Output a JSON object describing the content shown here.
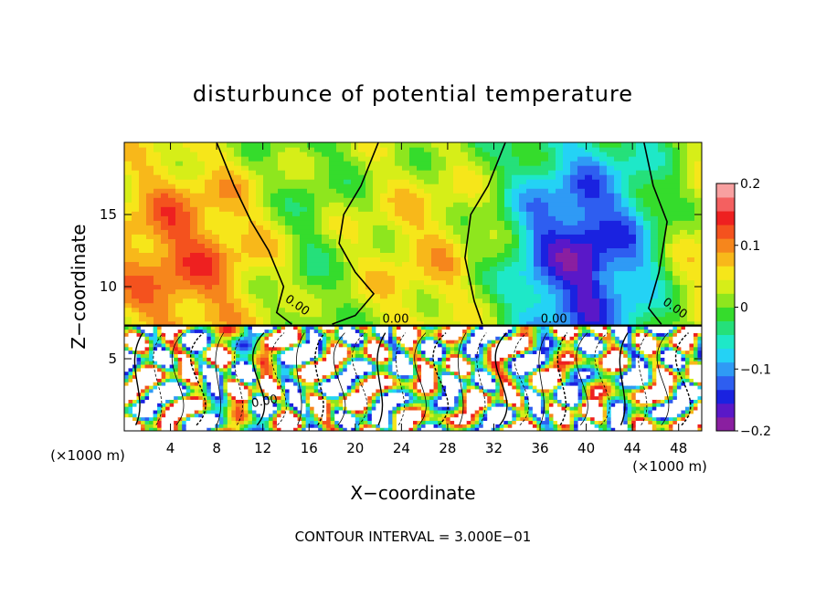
{
  "chart_data": {
    "type": "heatmap",
    "title": "disturbunce of potential temperature",
    "xlabel": "X−coordinate",
    "ylabel": "Z−coordinate",
    "x_unit_left": "(×1000 m)",
    "x_unit_right": "(×1000 m)",
    "xlim": [
      0,
      50
    ],
    "ylim": [
      0,
      20
    ],
    "x_ticks": [
      4,
      8,
      12,
      16,
      20,
      24,
      28,
      32,
      36,
      40,
      44,
      48
    ],
    "y_ticks": [
      5,
      10,
      15
    ],
    "colorbar": {
      "range": [
        -0.2,
        0.2
      ],
      "tick_values": [
        0.2,
        0.1,
        0,
        -0.1,
        -0.2
      ],
      "tick_labels": [
        "0.2",
        "0.1",
        "0",
        "−0.1",
        "−0.2"
      ],
      "colors": [
        "#8a1fa0",
        "#5a18c8",
        "#1a22e0",
        "#2e5ef0",
        "#2f9af5",
        "#24d2f5",
        "#1ee8c8",
        "#25e07a",
        "#35dc2c",
        "#8ee61e",
        "#d6ee18",
        "#f6e61a",
        "#f8b81a",
        "#f6861c",
        "#f4521e",
        "#ee2020",
        "#f46060",
        "#f8a0a0"
      ]
    },
    "contour_interval_text": "CONTOUR INTERVAL = 3.000E−01",
    "contour_labels": [
      "0.00",
      "0.00",
      "0.00",
      "0.00",
      "0.00"
    ],
    "upper_layer_field": {
      "description_values_by_x": {
        "x": [
          0,
          4,
          8,
          12,
          16,
          20,
          24,
          28,
          32,
          36,
          40,
          44,
          48,
          50
        ],
        "mean_value_z12": [
          0.08,
          0.12,
          0.1,
          0.05,
          -0.01,
          0.03,
          0.06,
          0.06,
          0.0,
          -0.12,
          -0.17,
          -0.1,
          0.02,
          0.05
        ]
      }
    },
    "inversion_height": 7.3
  }
}
